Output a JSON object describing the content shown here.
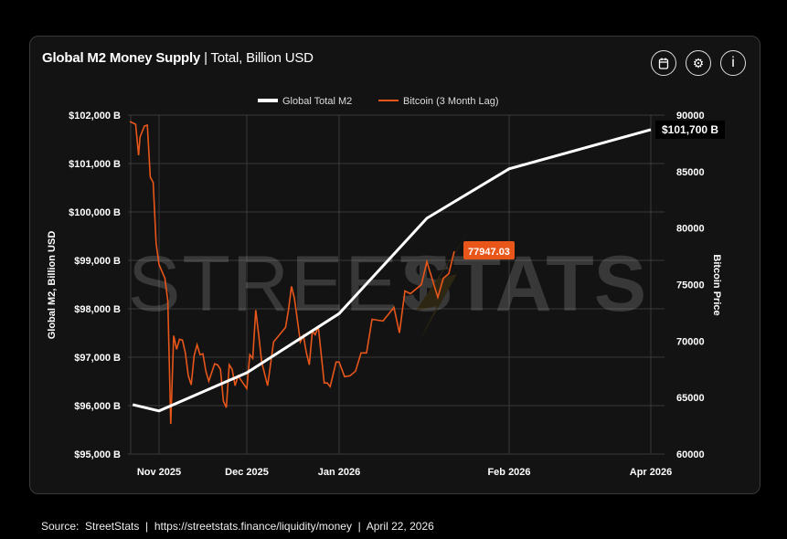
{
  "header": {
    "title_bold": "Global M2 Money Supply",
    "title_rest": " | Total, Billion USD"
  },
  "buttons": {
    "calendar": "calendar-icon",
    "settings": "gear-icon",
    "info": "i"
  },
  "footer": "Source:  StreetStats  |  https://streetstats.finance/liquidity/money  |  April 22, 2026",
  "watermark": {
    "light": "STREET",
    "bold": "STATS"
  },
  "chart_data": {
    "type": "line",
    "legend": [
      "Global Total M2",
      "Bitcoin (3 Month Lag)"
    ],
    "legend_placement": "top-center",
    "ylabel_left": "Global M2, Billion USD",
    "ylabel_right": "Bitcoin Price",
    "ylim_left": [
      95000,
      102000
    ],
    "ylim_right": [
      60000,
      90000
    ],
    "yticks_left": [
      "$102,000 B",
      "$101,000 B",
      "$100,000 B",
      "$99,000 B",
      "$98,000 B",
      "$97,000 B",
      "$96,000 B",
      "$95,000 B"
    ],
    "yticks_right": [
      "90000",
      "85000",
      "80000",
      "75000",
      "70000",
      "65000",
      "60000"
    ],
    "x_unit": "days since 2025-11-01",
    "xticks": [
      {
        "label": "Nov 2025",
        "day": 0
      },
      {
        "label": "Dec 2025",
        "day": 30
      },
      {
        "label": "Jan 2026",
        "day": 61
      },
      {
        "label": "Feb 2026",
        "day": 92
      },
      {
        "label": "Apr 2026",
        "day": 151
      }
    ],
    "colors": {
      "m2": "#ffffff",
      "btc": "#e8561a",
      "grid": "#3a3a3a"
    },
    "m2": [
      [
        -9,
        96020
      ],
      [
        0,
        95890
      ],
      [
        30,
        96680
      ],
      [
        61,
        97900
      ],
      [
        77,
        99870
      ],
      [
        92,
        100890
      ],
      [
        151,
        101700
      ]
    ],
    "m2_last_label": "$101,700 B",
    "btc_last_label": "77947.03",
    "btc": [
      [
        -10,
        89435
      ],
      [
        -8,
        89190
      ],
      [
        -7,
        86450
      ],
      [
        -6.5,
        88060
      ],
      [
        -5,
        89030
      ],
      [
        -4,
        89110
      ],
      [
        -3,
        84520
      ],
      [
        -2,
        84030
      ],
      [
        -1,
        78630
      ],
      [
        0,
        76770
      ],
      [
        2,
        75560
      ],
      [
        3,
        73550
      ],
      [
        4,
        62660
      ],
      [
        5,
        70480
      ],
      [
        6,
        69270
      ],
      [
        7,
        70160
      ],
      [
        8,
        70080
      ],
      [
        9,
        68950
      ],
      [
        10,
        66930
      ],
      [
        11,
        66130
      ],
      [
        12,
        68710
      ],
      [
        13,
        69680
      ],
      [
        14,
        68790
      ],
      [
        15,
        68870
      ],
      [
        16,
        67340
      ],
      [
        17,
        66450
      ],
      [
        19,
        67980
      ],
      [
        20,
        67900
      ],
      [
        21,
        67500
      ],
      [
        22,
        64680
      ],
      [
        23,
        64110
      ],
      [
        24,
        67900
      ],
      [
        25,
        67500
      ],
      [
        26,
        66050
      ],
      [
        27,
        66930
      ],
      [
        30,
        65800
      ],
      [
        31,
        68790
      ],
      [
        32,
        68470
      ],
      [
        33,
        72740
      ],
      [
        34,
        70560
      ],
      [
        35,
        68140
      ],
      [
        36,
        67100
      ],
      [
        37,
        66050
      ],
      [
        39,
        69920
      ],
      [
        41,
        70560
      ],
      [
        43,
        71210
      ],
      [
        44,
        72740
      ],
      [
        45,
        74840
      ],
      [
        46,
        73790
      ],
      [
        48,
        69920
      ],
      [
        49,
        70480
      ],
      [
        50,
        68950
      ],
      [
        51,
        67900
      ],
      [
        52,
        70880
      ],
      [
        53,
        70560
      ],
      [
        54,
        71290
      ],
      [
        56,
        66290
      ],
      [
        57,
        66290
      ],
      [
        58,
        65970
      ],
      [
        60,
        68140
      ],
      [
        61,
        68140
      ],
      [
        62,
        66850
      ],
      [
        63,
        66930
      ],
      [
        64,
        67340
      ],
      [
        65,
        68950
      ],
      [
        66,
        68950
      ],
      [
        67,
        71930
      ],
      [
        69,
        71770
      ],
      [
        71,
        72980
      ],
      [
        72,
        70720
      ],
      [
        73,
        74430
      ],
      [
        74,
        74190
      ],
      [
        76,
        75000
      ],
      [
        77,
        77020
      ],
      [
        79,
        73870
      ],
      [
        80,
        75560
      ],
      [
        81,
        75970
      ],
      [
        82,
        77947
      ]
    ]
  }
}
